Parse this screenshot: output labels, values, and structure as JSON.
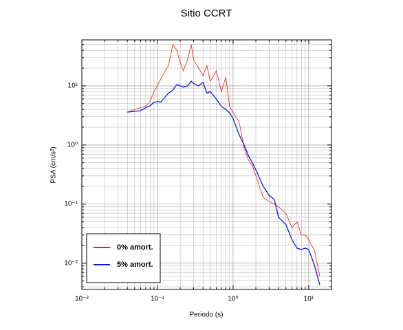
{
  "chart_data": {
    "type": "line",
    "title": "Sitio CCRT",
    "xlabel": "Periodo (s)",
    "ylabel": "PSA (cm/s²)",
    "xscale": "log",
    "yscale": "log",
    "grid": true,
    "minor_grid": true,
    "legend": "lower left",
    "xlim": [
      0.01,
      20
    ],
    "ylim": [
      0.0036,
      60
    ],
    "xticks": [
      {
        "value": 0.01,
        "label": "10⁻²"
      },
      {
        "value": 0.1,
        "label": "10⁻¹"
      },
      {
        "value": 1,
        "label": "10⁰"
      },
      {
        "value": 10,
        "label": "10¹"
      }
    ],
    "yticks": [
      {
        "value": 0.01,
        "label": "10⁻²"
      },
      {
        "value": 0.1,
        "label": "10⁻¹"
      },
      {
        "value": 1,
        "label": "10⁰"
      },
      {
        "value": 10,
        "label": "10¹"
      }
    ],
    "x": [
      0.04,
      0.05,
      0.06,
      0.07,
      0.08,
      0.09,
      0.1,
      0.11,
      0.12,
      0.14,
      0.16,
      0.18,
      0.2,
      0.22,
      0.25,
      0.28,
      0.3,
      0.35,
      0.4,
      0.45,
      0.5,
      0.6,
      0.7,
      0.8,
      0.9,
      1,
      1.2,
      1.4,
      1.6,
      1.8,
      2,
      2.5,
      3,
      3.5,
      4,
      5,
      6,
      7,
      8,
      9,
      10,
      12,
      14
    ],
    "series": [
      {
        "name": "0% amort.",
        "color": "#e8191c",
        "width": 0.8,
        "values": [
          3.6,
          4.0,
          4.3,
          4.5,
          5.5,
          8,
          10,
          13,
          16,
          22,
          50,
          40,
          25,
          18,
          28,
          50,
          28,
          20,
          15,
          22,
          12,
          18,
          8,
          14,
          4.5,
          3.5,
          2.5,
          0.9,
          0.55,
          0.45,
          0.3,
          0.13,
          0.11,
          0.1,
          0.09,
          0.07,
          0.04,
          0.05,
          0.03,
          0.03,
          0.025,
          0.016,
          0.006
        ]
      },
      {
        "name": "5% amort.",
        "color": "#0a14e6",
        "width": 1.3,
        "values": [
          3.6,
          3.7,
          3.8,
          4.3,
          4.6,
          5.3,
          5.4,
          5.3,
          6.0,
          7.5,
          8.5,
          10.5,
          10,
          9.5,
          10,
          12,
          11,
          10,
          11.5,
          7.5,
          8,
          6,
          4.5,
          4,
          3.5,
          2.8,
          1.5,
          1.0,
          0.65,
          0.5,
          0.38,
          0.2,
          0.14,
          0.12,
          0.06,
          0.045,
          0.025,
          0.018,
          0.017,
          0.018,
          0.017,
          0.009,
          0.0043
        ]
      }
    ]
  }
}
